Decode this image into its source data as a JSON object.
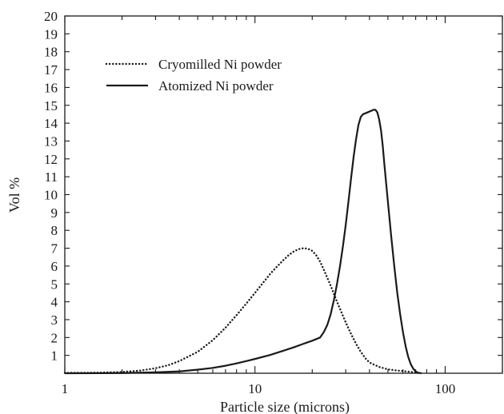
{
  "chart_data": {
    "type": "line",
    "title": "",
    "xlabel": "Particle size (microns)",
    "ylabel": "Vol %",
    "xscale": "log",
    "xlim": [
      1,
      200
    ],
    "ylim": [
      0,
      20
    ],
    "x_ticks": [
      1,
      10,
      100
    ],
    "x_tick_labels": [
      "1",
      "10",
      "100"
    ],
    "y_ticks": [
      1,
      2,
      3,
      4,
      5,
      6,
      7,
      8,
      9,
      10,
      11,
      12,
      13,
      14,
      15,
      16,
      17,
      18,
      19,
      20
    ],
    "y_tick_labels": [
      "1",
      "2",
      "3",
      "4",
      "5",
      "6",
      "7",
      "8",
      "9",
      "10",
      "11",
      "12",
      "13",
      "14",
      "15",
      "16",
      "17",
      "18",
      "19",
      "20"
    ],
    "grid": false,
    "legend_position": "top-left",
    "series": [
      {
        "name": "Cryomilled Ni powder",
        "style": "dotted",
        "color": "#1a1a1a",
        "x": [
          1,
          1.5,
          2,
          2.5,
          3,
          3.5,
          4,
          5,
          6,
          7,
          8,
          9,
          10,
          11,
          12,
          13,
          14,
          15,
          16,
          17,
          18,
          19,
          20,
          21,
          22,
          23,
          24,
          25,
          26,
          27,
          28,
          30,
          32,
          34,
          36,
          38,
          40,
          45,
          50,
          55,
          60,
          65,
          70,
          72,
          75
        ],
        "y": [
          0.02,
          0.03,
          0.07,
          0.15,
          0.28,
          0.45,
          0.68,
          1.2,
          1.85,
          2.55,
          3.25,
          3.9,
          4.5,
          5.05,
          5.55,
          5.95,
          6.3,
          6.6,
          6.82,
          6.95,
          7.0,
          6.97,
          6.85,
          6.6,
          6.25,
          5.8,
          5.35,
          4.9,
          4.45,
          4.0,
          3.6,
          2.85,
          2.2,
          1.65,
          1.2,
          0.85,
          0.6,
          0.35,
          0.22,
          0.16,
          0.12,
          0.08,
          0.05,
          0.02,
          0.0
        ]
      },
      {
        "name": "Atomized Ni powder",
        "style": "solid",
        "color": "#1a1a1a",
        "x": [
          1,
          2,
          3,
          4,
          5,
          6,
          7,
          8,
          9,
          10,
          12,
          14,
          16,
          18,
          20,
          22,
          23,
          24,
          25,
          26,
          27,
          28,
          29,
          30,
          31,
          32,
          33,
          34,
          35,
          36,
          37,
          38,
          39,
          40,
          41,
          42,
          43,
          44,
          45,
          46,
          47,
          48,
          50,
          52,
          54,
          56,
          58,
          60,
          62,
          64,
          66,
          68,
          70,
          72,
          75
        ],
        "y": [
          0.0,
          0.01,
          0.05,
          0.1,
          0.2,
          0.3,
          0.42,
          0.55,
          0.68,
          0.8,
          1.02,
          1.25,
          1.45,
          1.65,
          1.82,
          2.0,
          2.3,
          2.7,
          3.3,
          4.1,
          5.0,
          6.0,
          7.1,
          8.3,
          9.6,
          10.9,
          12.1,
          13.1,
          13.9,
          14.35,
          14.5,
          14.55,
          14.6,
          14.65,
          14.7,
          14.75,
          14.75,
          14.6,
          14.2,
          13.6,
          12.7,
          11.6,
          9.6,
          7.7,
          6.0,
          4.5,
          3.3,
          2.3,
          1.5,
          0.9,
          0.5,
          0.25,
          0.1,
          0.03,
          0.0
        ]
      }
    ]
  }
}
